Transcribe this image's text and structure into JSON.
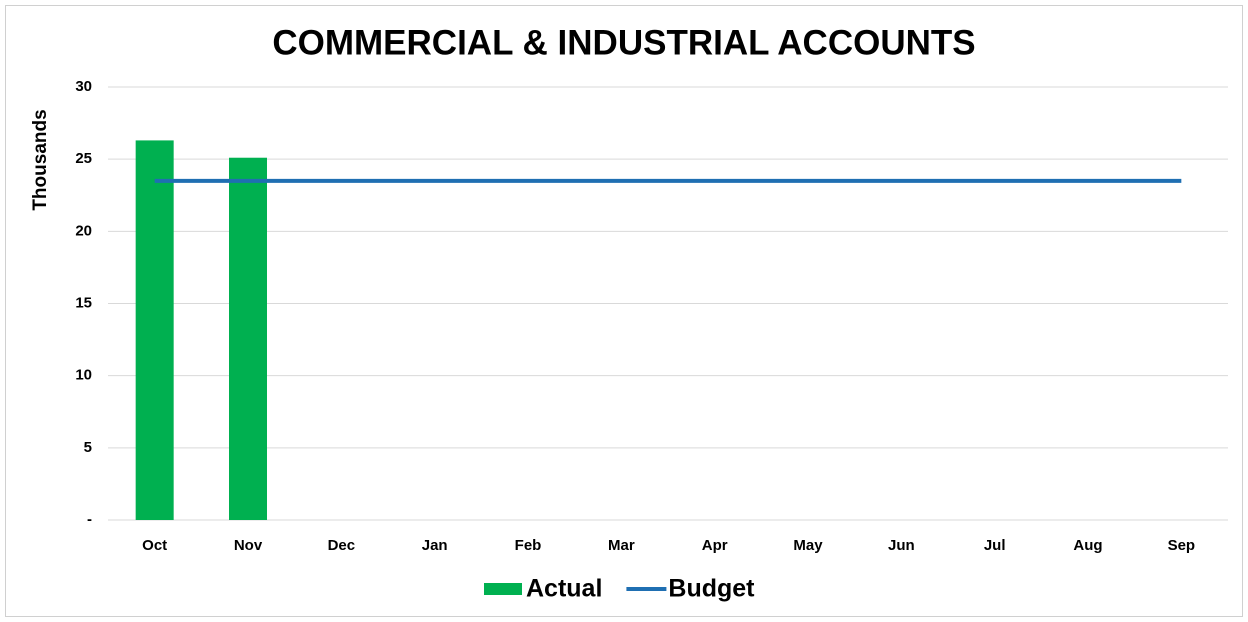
{
  "chart_data": {
    "type": "bar",
    "title": "COMMERCIAL & INDUSTRIAL ACCOUNTS",
    "y_label": "Thousands",
    "categories": [
      "Oct",
      "Nov",
      "Dec",
      "Jan",
      "Feb",
      "Mar",
      "Apr",
      "May",
      "Jun",
      "Jul",
      "Aug",
      "Sep"
    ],
    "series": [
      {
        "name": "Actual",
        "type": "bar",
        "color": "#00b050",
        "values": [
          26.3,
          25.1,
          null,
          null,
          null,
          null,
          null,
          null,
          null,
          null,
          null,
          null
        ]
      },
      {
        "name": "Budget",
        "type": "line",
        "color": "#1f6fb2",
        "values": [
          23.5,
          23.5,
          23.5,
          23.5,
          23.5,
          23.5,
          23.5,
          23.5,
          23.5,
          23.5,
          23.5,
          23.5
        ]
      }
    ],
    "ylim": [
      0,
      30
    ],
    "yticks": [
      {
        "value": 0,
        "label": "-"
      },
      5,
      10,
      15,
      20,
      25,
      30
    ],
    "grid": true,
    "legend": "bottom"
  }
}
